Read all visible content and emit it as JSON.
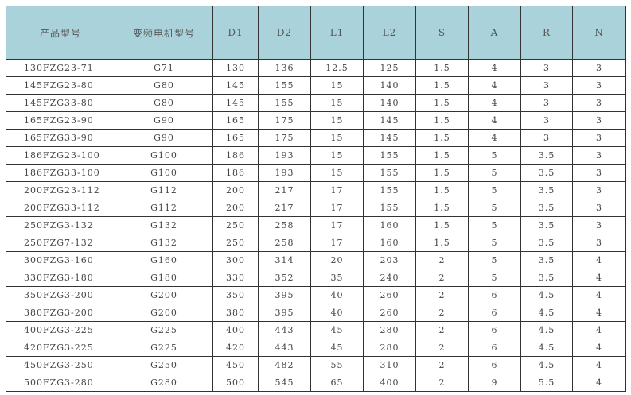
{
  "header_color": "#a9d2da",
  "columns": [
    "产品型号",
    "变频电机型号",
    "D1",
    "D2",
    "L1",
    "L2",
    "S",
    "A",
    "R",
    "N"
  ],
  "rows": [
    [
      "130FZG23-71",
      "G71",
      "130",
      "136",
      "12.5",
      "125",
      "1.5",
      "4",
      "3",
      "3"
    ],
    [
      "145FZG23-80",
      "G80",
      "145",
      "155",
      "15",
      "140",
      "1.5",
      "4",
      "3",
      "3"
    ],
    [
      "145FZG33-80",
      "G80",
      "145",
      "155",
      "15",
      "140",
      "1.5",
      "4",
      "3",
      "3"
    ],
    [
      "165FZG23-90",
      "G90",
      "165",
      "175",
      "15",
      "145",
      "1.5",
      "4",
      "3",
      "3"
    ],
    [
      "165FZG33-90",
      "G90",
      "165",
      "175",
      "15",
      "145",
      "1.5",
      "4",
      "3",
      "3"
    ],
    [
      "186FZG23-100",
      "G100",
      "186",
      "193",
      "15",
      "155",
      "1.5",
      "5",
      "3.5",
      "3"
    ],
    [
      "186FZG33-100",
      "G100",
      "186",
      "193",
      "15",
      "155",
      "1.5",
      "5",
      "3.5",
      "3"
    ],
    [
      "200FZG23-112",
      "G112",
      "200",
      "217",
      "17",
      "155",
      "1.5",
      "5",
      "3.5",
      "3"
    ],
    [
      "200FZG33-112",
      "G112",
      "200",
      "217",
      "17",
      "155",
      "1.5",
      "5",
      "3.5",
      "3"
    ],
    [
      "250FZG3-132",
      "G132",
      "250",
      "258",
      "17",
      "160",
      "1.5",
      "5",
      "3.5",
      "3"
    ],
    [
      "250FZG7-132",
      "G132",
      "250",
      "258",
      "17",
      "160",
      "1.5",
      "5",
      "3.5",
      "3"
    ],
    [
      "300FZG3-160",
      "G160",
      "300",
      "314",
      "20",
      "203",
      "2",
      "5",
      "3.5",
      "4"
    ],
    [
      "330FZG3-180",
      "G180",
      "330",
      "352",
      "35",
      "240",
      "2",
      "5",
      "3.5",
      "4"
    ],
    [
      "350FZG3-200",
      "G200",
      "350",
      "395",
      "40",
      "260",
      "2",
      "6",
      "4.5",
      "4"
    ],
    [
      "380FZG3-200",
      "G200",
      "380",
      "395",
      "40",
      "260",
      "2",
      "6",
      "4.5",
      "4"
    ],
    [
      "400FZG3-225",
      "G225",
      "400",
      "443",
      "45",
      "280",
      "2",
      "6",
      "4.5",
      "4"
    ],
    [
      "420FZG3-225",
      "G225",
      "420",
      "443",
      "45",
      "280",
      "2",
      "6",
      "4.5",
      "4"
    ],
    [
      "450FZG3-250",
      "G250",
      "450",
      "482",
      "55",
      "310",
      "2",
      "6",
      "4.5",
      "4"
    ],
    [
      "500FZG3-280",
      "G280",
      "500",
      "545",
      "65",
      "400",
      "2",
      "9",
      "5.5",
      "4"
    ]
  ]
}
